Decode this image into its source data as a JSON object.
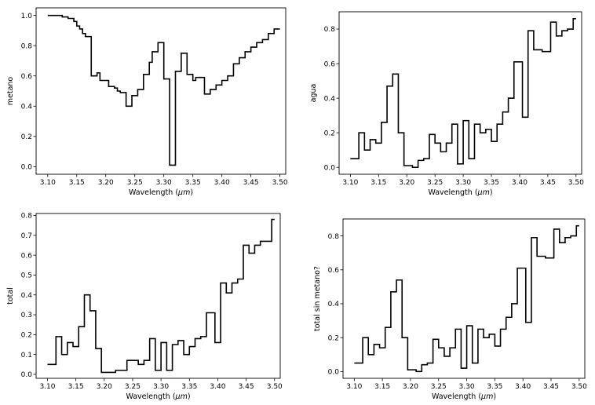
{
  "chart_data": [
    {
      "type": "line",
      "step": "post",
      "xlabel": "Wavelength",
      "xunit": "µm",
      "ylabel": "metano",
      "xlim": [
        3.08,
        3.51
      ],
      "ylim": [
        -0.05,
        1.05
      ],
      "xticks": [
        "3.10",
        "3.15",
        "3.20",
        "3.25",
        "3.30",
        "3.35",
        "3.40",
        "3.45",
        "3.50"
      ],
      "yticks": [
        "0.0",
        "0.2",
        "0.4",
        "0.6",
        "0.8",
        "1.0"
      ],
      "series": [
        {
          "x": [
            3.1,
            3.11,
            3.12,
            3.125,
            3.135,
            3.145,
            3.15,
            3.155,
            3.16,
            3.165,
            3.17,
            3.175,
            3.18,
            3.185,
            3.19,
            3.195,
            3.2,
            3.205,
            3.21,
            3.215,
            3.22,
            3.225,
            3.23,
            3.235,
            3.24,
            3.245,
            3.25,
            3.255,
            3.26,
            3.265,
            3.27,
            3.275,
            3.28,
            3.285,
            3.29,
            3.295,
            3.3,
            3.305,
            3.31,
            3.315,
            3.32,
            3.325,
            3.33,
            3.335,
            3.34,
            3.345,
            3.35,
            3.355,
            3.36,
            3.365,
            3.37,
            3.375,
            3.38,
            3.385,
            3.39,
            3.395,
            3.4,
            3.405,
            3.41,
            3.415,
            3.42,
            3.425,
            3.43,
            3.435,
            3.44,
            3.445,
            3.45,
            3.455,
            3.46,
            3.465,
            3.47,
            3.475,
            3.48,
            3.485,
            3.49,
            3.495,
            3.5
          ],
          "y": [
            1.0,
            1.0,
            1.0,
            0.99,
            0.98,
            0.96,
            0.93,
            0.91,
            0.88,
            0.86,
            0.86,
            0.6,
            0.6,
            0.62,
            0.57,
            0.57,
            0.57,
            0.53,
            0.53,
            0.52,
            0.5,
            0.49,
            0.49,
            0.4,
            0.4,
            0.47,
            0.47,
            0.51,
            0.51,
            0.61,
            0.61,
            0.69,
            0.76,
            0.76,
            0.82,
            0.82,
            0.58,
            0.58,
            0.01,
            0.01,
            0.63,
            0.63,
            0.75,
            0.75,
            0.61,
            0.61,
            0.57,
            0.59,
            0.59,
            0.59,
            0.48,
            0.48,
            0.51,
            0.51,
            0.54,
            0.54,
            0.57,
            0.57,
            0.6,
            0.6,
            0.68,
            0.68,
            0.72,
            0.72,
            0.76,
            0.76,
            0.79,
            0.79,
            0.82,
            0.82,
            0.84,
            0.84,
            0.88,
            0.88,
            0.91,
            0.91,
            0.91
          ]
        }
      ]
    },
    {
      "type": "line",
      "step": "post",
      "xlabel": "Wavelength",
      "xunit": "µm",
      "ylabel": "agua",
      "xlim": [
        3.08,
        3.51
      ],
      "ylim": [
        -0.04,
        0.9
      ],
      "xticks": [
        "3.10",
        "3.15",
        "3.20",
        "3.25",
        "3.30",
        "3.35",
        "3.40",
        "3.45",
        "3.50"
      ],
      "yticks": [
        "0.0",
        "0.2",
        "0.4",
        "0.6",
        "0.8"
      ],
      "series": [
        {
          "x": [
            3.1,
            3.11,
            3.115,
            3.12,
            3.125,
            3.13,
            3.135,
            3.14,
            3.145,
            3.15,
            3.155,
            3.16,
            3.165,
            3.17,
            3.175,
            3.18,
            3.185,
            3.19,
            3.195,
            3.2,
            3.205,
            3.21,
            3.215,
            3.22,
            3.225,
            3.23,
            3.235,
            3.24,
            3.245,
            3.25,
            3.255,
            3.26,
            3.265,
            3.27,
            3.275,
            3.28,
            3.285,
            3.29,
            3.295,
            3.3,
            3.305,
            3.31,
            3.315,
            3.32,
            3.325,
            3.33,
            3.335,
            3.34,
            3.345,
            3.35,
            3.355,
            3.36,
            3.365,
            3.37,
            3.375,
            3.38,
            3.385,
            3.39,
            3.395,
            3.4,
            3.405,
            3.41,
            3.415,
            3.42,
            3.425,
            3.43,
            3.435,
            3.44,
            3.445,
            3.45,
            3.455,
            3.46,
            3.465,
            3.47,
            3.475,
            3.48,
            3.485,
            3.49,
            3.495,
            3.5
          ],
          "y": [
            0.05,
            0.05,
            0.2,
            0.2,
            0.1,
            0.1,
            0.16,
            0.16,
            0.14,
            0.14,
            0.26,
            0.26,
            0.47,
            0.47,
            0.54,
            0.54,
            0.2,
            0.2,
            0.01,
            0.01,
            0.01,
            0.0,
            0.0,
            0.04,
            0.04,
            0.05,
            0.05,
            0.19,
            0.19,
            0.14,
            0.14,
            0.09,
            0.09,
            0.14,
            0.14,
            0.25,
            0.25,
            0.02,
            0.02,
            0.27,
            0.27,
            0.05,
            0.05,
            0.25,
            0.25,
            0.2,
            0.2,
            0.22,
            0.22,
            0.15,
            0.15,
            0.25,
            0.25,
            0.32,
            0.32,
            0.4,
            0.4,
            0.61,
            0.61,
            0.61,
            0.29,
            0.29,
            0.79,
            0.79,
            0.68,
            0.68,
            0.68,
            0.67,
            0.67,
            0.67,
            0.84,
            0.84,
            0.76,
            0.76,
            0.79,
            0.79,
            0.8,
            0.8,
            0.86,
            0.86
          ]
        }
      ]
    },
    {
      "type": "line",
      "step": "post",
      "xlabel": "Wavelength",
      "xunit": "µm",
      "ylabel": "total",
      "xlim": [
        3.08,
        3.51
      ],
      "ylim": [
        -0.02,
        0.81
      ],
      "xticks": [
        "3.10",
        "3.15",
        "3.20",
        "3.25",
        "3.30",
        "3.35",
        "3.40",
        "3.45",
        "3.50"
      ],
      "yticks": [
        "0.0",
        "0.1",
        "0.2",
        "0.3",
        "0.4",
        "0.5",
        "0.6",
        "0.7",
        "0.8"
      ],
      "series": [
        {
          "x": [
            3.1,
            3.11,
            3.115,
            3.12,
            3.125,
            3.13,
            3.135,
            3.14,
            3.145,
            3.15,
            3.155,
            3.16,
            3.165,
            3.17,
            3.175,
            3.18,
            3.185,
            3.19,
            3.195,
            3.2,
            3.205,
            3.21,
            3.215,
            3.22,
            3.225,
            3.23,
            3.235,
            3.24,
            3.245,
            3.25,
            3.255,
            3.26,
            3.265,
            3.27,
            3.275,
            3.28,
            3.285,
            3.29,
            3.295,
            3.3,
            3.305,
            3.31,
            3.315,
            3.32,
            3.325,
            3.33,
            3.335,
            3.34,
            3.345,
            3.35,
            3.355,
            3.36,
            3.365,
            3.37,
            3.375,
            3.38,
            3.385,
            3.39,
            3.395,
            3.4,
            3.405,
            3.41,
            3.415,
            3.42,
            3.425,
            3.43,
            3.435,
            3.44,
            3.445,
            3.45,
            3.455,
            3.46,
            3.465,
            3.47,
            3.475,
            3.48,
            3.485,
            3.49,
            3.495,
            3.5
          ],
          "y": [
            0.05,
            0.05,
            0.19,
            0.19,
            0.1,
            0.1,
            0.16,
            0.16,
            0.14,
            0.14,
            0.24,
            0.24,
            0.4,
            0.4,
            0.32,
            0.32,
            0.13,
            0.13,
            0.01,
            0.01,
            0.01,
            0.01,
            0.01,
            0.02,
            0.02,
            0.02,
            0.02,
            0.07,
            0.07,
            0.07,
            0.07,
            0.05,
            0.05,
            0.07,
            0.07,
            0.18,
            0.18,
            0.02,
            0.02,
            0.16,
            0.16,
            0.02,
            0.02,
            0.15,
            0.15,
            0.17,
            0.17,
            0.1,
            0.1,
            0.14,
            0.14,
            0.18,
            0.18,
            0.19,
            0.19,
            0.31,
            0.31,
            0.31,
            0.16,
            0.16,
            0.46,
            0.46,
            0.41,
            0.41,
            0.46,
            0.46,
            0.48,
            0.48,
            0.65,
            0.65,
            0.61,
            0.61,
            0.65,
            0.65,
            0.67,
            0.67,
            0.67,
            0.67,
            0.78,
            0.78
          ]
        }
      ]
    },
    {
      "type": "line",
      "step": "post",
      "xlabel": "Wavelength",
      "xunit": "µm",
      "ylabel": "total sin metano?",
      "xlim": [
        3.08,
        3.51
      ],
      "ylim": [
        -0.04,
        0.9
      ],
      "xticks": [
        "3.10",
        "3.15",
        "3.20",
        "3.25",
        "3.30",
        "3.35",
        "3.40",
        "3.45",
        "3.50"
      ],
      "yticks": [
        "0.0",
        "0.2",
        "0.4",
        "0.6",
        "0.8"
      ],
      "series": [
        {
          "x": [
            3.1,
            3.11,
            3.115,
            3.12,
            3.125,
            3.13,
            3.135,
            3.14,
            3.145,
            3.15,
            3.155,
            3.16,
            3.165,
            3.17,
            3.175,
            3.18,
            3.185,
            3.19,
            3.195,
            3.2,
            3.205,
            3.21,
            3.215,
            3.22,
            3.225,
            3.23,
            3.235,
            3.24,
            3.245,
            3.25,
            3.255,
            3.26,
            3.265,
            3.27,
            3.275,
            3.28,
            3.285,
            3.29,
            3.295,
            3.3,
            3.305,
            3.31,
            3.315,
            3.32,
            3.325,
            3.33,
            3.335,
            3.34,
            3.345,
            3.35,
            3.355,
            3.36,
            3.365,
            3.37,
            3.375,
            3.38,
            3.385,
            3.39,
            3.395,
            3.4,
            3.405,
            3.41,
            3.415,
            3.42,
            3.425,
            3.43,
            3.435,
            3.44,
            3.445,
            3.45,
            3.455,
            3.46,
            3.465,
            3.47,
            3.475,
            3.48,
            3.485,
            3.49,
            3.495,
            3.5
          ],
          "y": [
            0.05,
            0.05,
            0.2,
            0.2,
            0.1,
            0.1,
            0.16,
            0.16,
            0.14,
            0.14,
            0.26,
            0.26,
            0.47,
            0.47,
            0.54,
            0.54,
            0.2,
            0.2,
            0.01,
            0.01,
            0.01,
            0.0,
            0.0,
            0.04,
            0.04,
            0.05,
            0.05,
            0.19,
            0.19,
            0.14,
            0.14,
            0.09,
            0.09,
            0.14,
            0.14,
            0.25,
            0.25,
            0.02,
            0.02,
            0.27,
            0.27,
            0.05,
            0.05,
            0.25,
            0.25,
            0.2,
            0.2,
            0.22,
            0.22,
            0.15,
            0.15,
            0.25,
            0.25,
            0.32,
            0.32,
            0.4,
            0.4,
            0.61,
            0.61,
            0.61,
            0.29,
            0.29,
            0.79,
            0.79,
            0.68,
            0.68,
            0.68,
            0.67,
            0.67,
            0.67,
            0.84,
            0.84,
            0.76,
            0.76,
            0.79,
            0.79,
            0.8,
            0.8,
            0.86,
            0.86
          ]
        }
      ]
    }
  ]
}
